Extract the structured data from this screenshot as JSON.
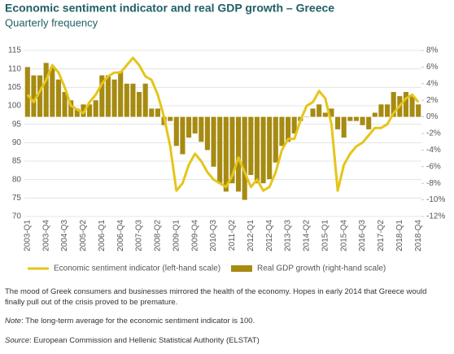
{
  "chart_data": {
    "type": "bar-line",
    "title": "Economic sentiment indicator and real GDP growth – Greece",
    "subtitle": "Quarterly frequency",
    "categories": [
      "2003-Q1",
      null,
      null,
      "2003-Q4",
      null,
      null,
      "2004-Q3",
      null,
      null,
      "2005-Q2",
      null,
      null,
      "2006-Q1",
      null,
      null,
      "2006-Q4",
      null,
      null,
      "2007-Q3",
      null,
      null,
      "2008-Q2",
      null,
      null,
      "2009-Q1",
      null,
      null,
      "2009-Q4",
      null,
      null,
      "2010-Q3",
      null,
      null,
      "2011-Q2",
      null,
      null,
      "2012-Q1",
      null,
      null,
      "2012-Q4",
      null,
      null,
      "2013-Q3",
      null,
      null,
      "2014-Q2",
      null,
      null,
      "2015-Q1",
      null,
      null,
      "2015-Q4",
      null,
      null,
      "2016-Q3",
      null,
      null,
      "2017-Q2",
      null,
      null,
      "2018-Q1",
      null,
      null,
      "2018-Q4"
    ],
    "series": [
      {
        "name": "Real GDP growth (right-hand scale)",
        "type": "bar",
        "axis": "y2",
        "color": "#a68b12",
        "values": [
          6,
          5,
          5,
          6.5,
          6,
          4.5,
          3,
          2,
          1,
          1.5,
          1.5,
          2,
          5,
          5,
          4.5,
          5.5,
          4,
          4,
          3,
          4,
          1,
          1,
          -1,
          -0.5,
          -3.5,
          -4.5,
          -2.5,
          -2,
          -3,
          -4,
          -6,
          -8,
          -9,
          -8,
          -9,
          -10,
          -7,
          -8,
          -8,
          -7.5,
          -5.5,
          -3.5,
          -3,
          -2,
          -0.5,
          0,
          1,
          1.5,
          0.5,
          1,
          -1.5,
          -2.5,
          -0.5,
          -0.5,
          -1,
          -1.5,
          0.5,
          1.5,
          1.5,
          3,
          2.5,
          3,
          2.5,
          1.5
        ]
      },
      {
        "name": "Economic sentiment indicator (left-hand scale)",
        "type": "line",
        "axis": "y",
        "color": "#e5c51a",
        "values": [
          103,
          101,
          104,
          107,
          111,
          109,
          105,
          100,
          99,
          98,
          101,
          103,
          106,
          108,
          109,
          109,
          111,
          113,
          111,
          108,
          107,
          103,
          97,
          89,
          77,
          79,
          84,
          87,
          85,
          82,
          80,
          79,
          78,
          81,
          86,
          82,
          78,
          80,
          77,
          78,
          82,
          88,
          91,
          91,
          96,
          100,
          101,
          104,
          102,
          95,
          77,
          84,
          87,
          89,
          90,
          92,
          94,
          94,
          95,
          98,
          100,
          102,
          103,
          101
        ]
      }
    ],
    "ylim": [
      70,
      115
    ],
    "yticks": [
      70,
      75,
      80,
      85,
      90,
      95,
      100,
      105,
      110,
      115
    ],
    "y2lim": [
      -12,
      8
    ],
    "y2ticks": [
      {
        "value": -12,
        "label": "-12%"
      },
      {
        "value": -10,
        "label": "-10%"
      },
      {
        "value": -8,
        "label": "-8%"
      },
      {
        "value": -6,
        "label": "-6%"
      },
      {
        "value": -4,
        "label": "-4%"
      },
      {
        "value": -2,
        "label": "-2%"
      },
      {
        "value": 0,
        "label": "0%"
      },
      {
        "value": 2,
        "label": "2%"
      },
      {
        "value": 4,
        "label": "4%"
      },
      {
        "value": 6,
        "label": "6%"
      },
      {
        "value": 8,
        "label": "8%"
      }
    ],
    "grid": true,
    "legend": "bottom"
  },
  "text": {
    "paragraph": "The mood of Greek consumers and businesses mirrored the health of the economy. Hopes in early 2014 that Greece would finally pull out of the crisis proved to be premature.",
    "note_label": "Note",
    "note": ": The long-term average for the economic sentiment indicator is 100.",
    "source_label": "Source",
    "source": ": European Commission and Hellenic Statistical Authority (ELSTAT)"
  }
}
